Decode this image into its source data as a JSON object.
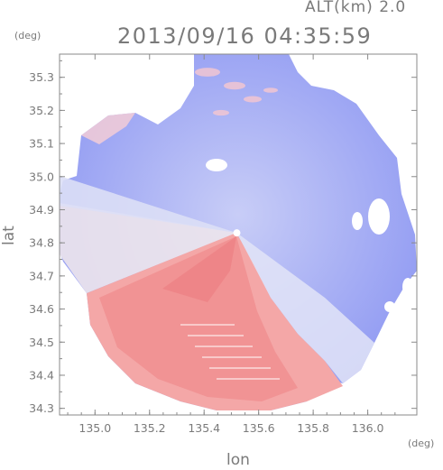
{
  "header": {
    "altitude_label": "ALT(km) 2.0",
    "timestamp": "2013/09/16 04:35:59"
  },
  "colors": {
    "positive": "#f07a7a",
    "negative": "#7a85f0",
    "frame": "#8a8a8a",
    "text": "#7a7a7a"
  },
  "chart_data": {
    "type": "heatmap",
    "title": "2013/09/16 04:35:59",
    "subtitle": "ALT(km) 2.0",
    "xlabel": "lon",
    "ylabel": "lat",
    "x_unit": "(deg)",
    "y_unit": "(deg)",
    "xlim": [
      134.87,
      136.18
    ],
    "ylim": [
      34.28,
      35.37
    ],
    "x_ticks": [
      135.0,
      135.2,
      135.4,
      135.6,
      135.8,
      136.0
    ],
    "x_tick_labels": [
      "135.0",
      "135.2",
      "135.4",
      "135.6",
      "135.8",
      "136.0"
    ],
    "y_ticks": [
      34.3,
      34.4,
      34.5,
      34.6,
      34.7,
      34.8,
      34.9,
      35.0,
      35.1,
      35.2,
      35.3
    ],
    "y_tick_labels": [
      "34.3",
      "34.4",
      "34.5",
      "34.6",
      "34.7",
      "34.8",
      "34.9",
      "35.0",
      "35.1",
      "35.2",
      "35.3"
    ],
    "radar_center": [
      135.52,
      34.83
    ],
    "grid": false
  }
}
